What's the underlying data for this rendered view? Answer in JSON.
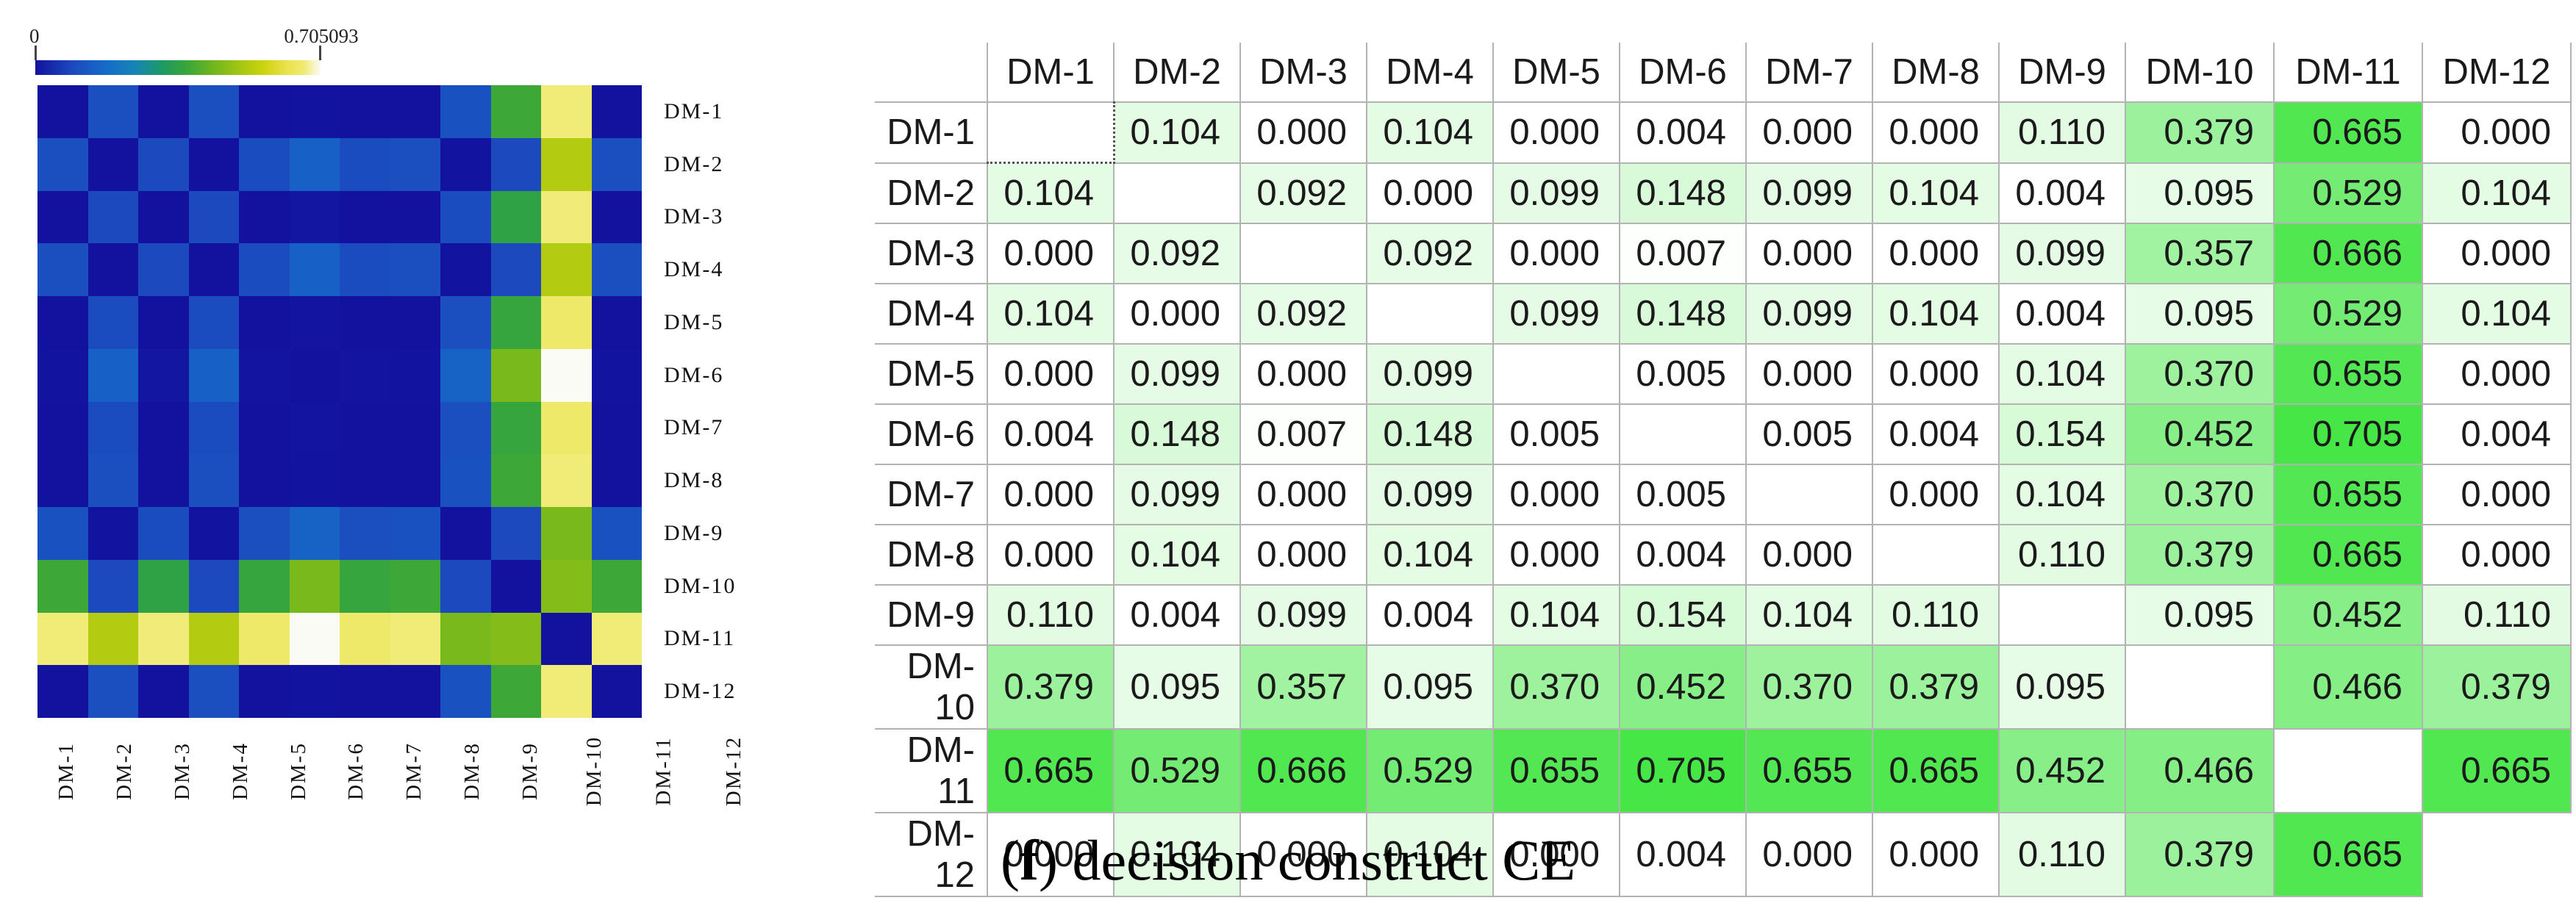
{
  "figure_caption": {
    "open": "(",
    "letter": "f",
    "close": ")",
    "text": " decision construct CE"
  },
  "colorbar": {
    "min_label": "0",
    "max_label": "0.705093",
    "vmin": 0,
    "vmax": 0.705093,
    "stops": [
      {
        "t": 0.0,
        "color": "#12129E"
      },
      {
        "t": 0.13,
        "color": "#1C49BE"
      },
      {
        "t": 0.25,
        "color": "#156CC8"
      },
      {
        "t": 0.35,
        "color": "#1585B5"
      },
      {
        "t": 0.45,
        "color": "#1E9A62"
      },
      {
        "t": 0.53,
        "color": "#38A63A"
      },
      {
        "t": 0.62,
        "color": "#6EB51E"
      },
      {
        "t": 0.72,
        "color": "#A4C712"
      },
      {
        "t": 0.8,
        "color": "#CCD30F"
      },
      {
        "t": 0.88,
        "color": "#EAE24A"
      },
      {
        "t": 0.94,
        "color": "#F0EA70"
      },
      {
        "t": 1.0,
        "color": "#FBFBF6"
      }
    ]
  },
  "table_style": {
    "base_color": "#FFFFFF",
    "max_green": "#46E646"
  },
  "chart_data": {
    "type": "heatmap",
    "title": "",
    "rows": [
      "DM-1",
      "DM-2",
      "DM-3",
      "DM-4",
      "DM-5",
      "DM-6",
      "DM-7",
      "DM-8",
      "DM-9",
      "DM-10",
      "DM-11",
      "DM-12"
    ],
    "cols": [
      "DM-1",
      "DM-2",
      "DM-3",
      "DM-4",
      "DM-5",
      "DM-6",
      "DM-7",
      "DM-8",
      "DM-9",
      "DM-10",
      "DM-11",
      "DM-12"
    ],
    "vmin": 0,
    "vmax": 0.705093,
    "legend_position": "top-left horizontal colorbar",
    "caption": "(f) decision construct CE",
    "matrix": [
      [
        null,
        0.104,
        0.0,
        0.104,
        0.0,
        0.004,
        0.0,
        0.0,
        0.11,
        0.379,
        0.665,
        0.0
      ],
      [
        0.104,
        null,
        0.092,
        0.0,
        0.099,
        0.148,
        0.099,
        0.104,
        0.004,
        0.095,
        0.529,
        0.104
      ],
      [
        0.0,
        0.092,
        null,
        0.092,
        0.0,
        0.007,
        0.0,
        0.0,
        0.099,
        0.357,
        0.666,
        0.0
      ],
      [
        0.104,
        0.0,
        0.092,
        null,
        0.099,
        0.148,
        0.099,
        0.104,
        0.004,
        0.095,
        0.529,
        0.104
      ],
      [
        0.0,
        0.099,
        0.0,
        0.099,
        null,
        0.005,
        0.0,
        0.0,
        0.104,
        0.37,
        0.655,
        0.0
      ],
      [
        0.004,
        0.148,
        0.007,
        0.148,
        0.005,
        null,
        0.005,
        0.004,
        0.154,
        0.452,
        0.705,
        0.004
      ],
      [
        0.0,
        0.099,
        0.0,
        0.099,
        0.0,
        0.005,
        null,
        0.0,
        0.104,
        0.37,
        0.655,
        0.0
      ],
      [
        0.0,
        0.104,
        0.0,
        0.104,
        0.0,
        0.004,
        0.0,
        null,
        0.11,
        0.379,
        0.665,
        0.0
      ],
      [
        0.11,
        0.004,
        0.099,
        0.004,
        0.104,
        0.154,
        0.104,
        0.11,
        null,
        0.095,
        0.452,
        0.11
      ],
      [
        0.379,
        0.095,
        0.357,
        0.095,
        0.37,
        0.452,
        0.37,
        0.379,
        0.095,
        null,
        0.466,
        0.379
      ],
      [
        0.665,
        0.529,
        0.666,
        0.529,
        0.655,
        0.705,
        0.655,
        0.665,
        0.452,
        0.466,
        null,
        0.665
      ],
      [
        0.0,
        0.104,
        0.0,
        0.104,
        0.0,
        0.004,
        0.0,
        0.0,
        0.11,
        0.379,
        0.665,
        null
      ]
    ]
  }
}
